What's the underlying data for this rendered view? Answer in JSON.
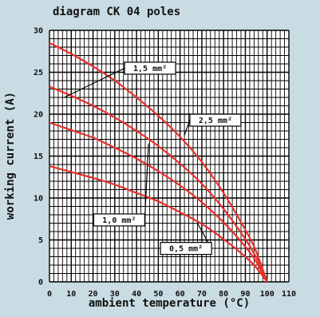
{
  "chart_data": {
    "type": "line",
    "title": "diagram CK 04 poles",
    "xlabel": "ambient temperature (°C)",
    "ylabel": "working current (A)",
    "xlim": [
      0,
      110
    ],
    "ylim": [
      0,
      30
    ],
    "x_ticks": [
      "0",
      "10",
      "20",
      "30",
      "40",
      "50",
      "60",
      "70",
      "80",
      "90",
      "100",
      "110"
    ],
    "y_ticks": [
      "0",
      "5",
      "10",
      "15",
      "20",
      "25",
      "30"
    ],
    "grid": true,
    "series": [
      {
        "name": "1,5 mm²",
        "x": [
          0,
          10,
          20,
          30,
          40,
          50,
          60,
          70,
          80,
          90,
          95,
          100
        ],
        "y": [
          28.5,
          27.2,
          25.7,
          24.0,
          22.0,
          19.8,
          17.3,
          14.3,
          10.6,
          6.2,
          3.6,
          0
        ]
      },
      {
        "name": "2,5 mm²",
        "x": [
          0,
          10,
          20,
          30,
          40,
          50,
          60,
          70,
          80,
          90,
          95,
          100
        ],
        "y": [
          23.3,
          22.2,
          21.0,
          19.6,
          18.0,
          16.2,
          14.1,
          11.7,
          8.7,
          5.1,
          2.9,
          0
        ]
      },
      {
        "name": "1,0 mm²",
        "x": [
          0,
          10,
          20,
          30,
          40,
          50,
          60,
          70,
          80,
          90,
          95,
          100
        ],
        "y": [
          19.0,
          18.1,
          17.2,
          16.0,
          14.7,
          13.2,
          11.5,
          9.5,
          7.1,
          4.2,
          2.4,
          0
        ]
      },
      {
        "name": "0,5 mm²",
        "x": [
          0,
          10,
          20,
          30,
          40,
          50,
          60,
          70,
          80,
          90,
          95,
          100
        ],
        "y": [
          13.8,
          13.1,
          12.4,
          11.6,
          10.6,
          9.6,
          8.3,
          6.9,
          5.1,
          3.0,
          1.7,
          0
        ]
      }
    ],
    "annotations": [
      {
        "series": 0,
        "text": "1,5 mm²",
        "box_x": 34.5,
        "box_y": 26.2,
        "tip_x": 6.8,
        "tip_y": 22.0
      },
      {
        "series": 1,
        "text": "2,5 mm²",
        "box_x": 64.5,
        "box_y": 20.0,
        "tip_x": 62.0,
        "tip_y": 17.5
      },
      {
        "series": 2,
        "text": "1,0 mm²",
        "box_x": 20.3,
        "box_y": 8.1,
        "tip_x": 45.5,
        "tip_y": 16.5
      },
      {
        "series": 3,
        "text": "0,5 mm²",
        "box_x": 51.0,
        "box_y": 4.7,
        "tip_x": 68.0,
        "tip_y": 7.0
      }
    ],
    "colors": {
      "line": "#e8302a",
      "grid": "#000000",
      "plot_bg": "#ffffff",
      "background": "#c9dce3"
    }
  }
}
